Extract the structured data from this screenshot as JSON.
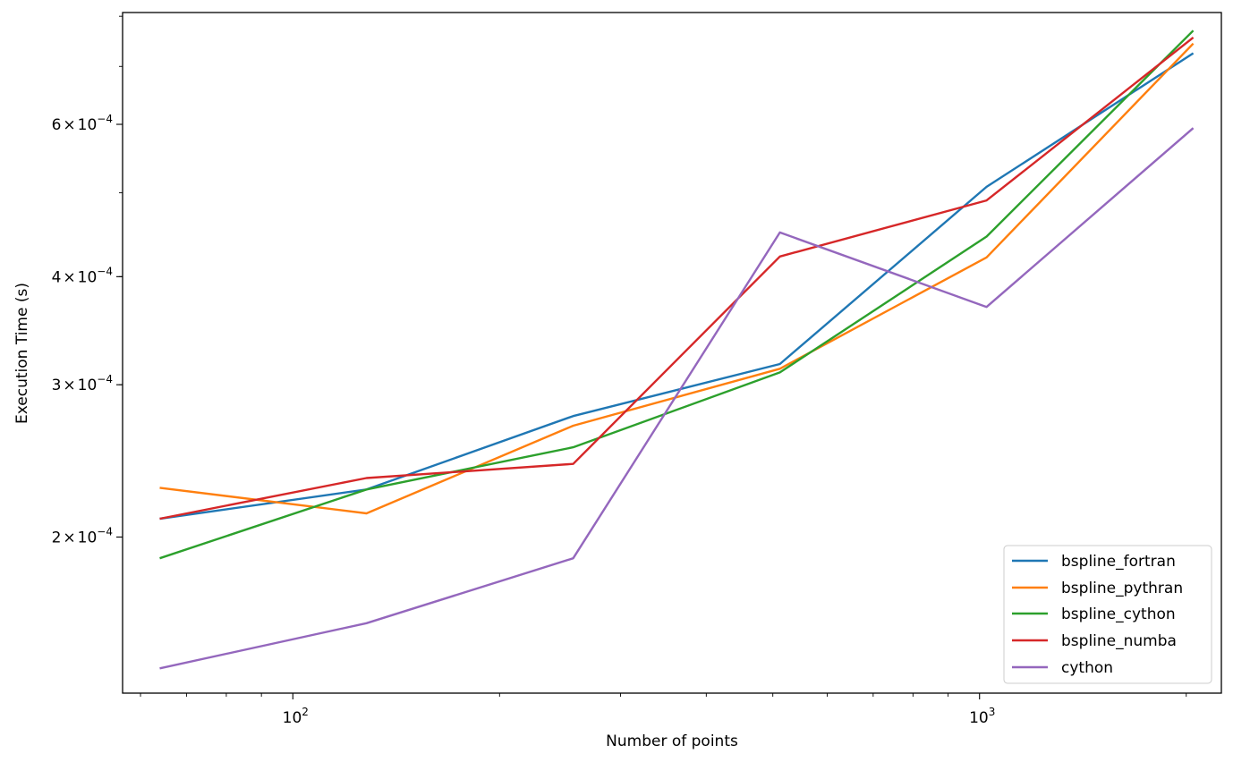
{
  "chart_data": {
    "type": "line",
    "title": "",
    "xlabel": "Number of points",
    "ylabel": "Execution Time (s)",
    "xscale": "log",
    "yscale": "log",
    "xlim": [
      56.5,
      2250
    ],
    "ylim": [
      0.000132,
      0.000808
    ],
    "x": [
      64,
      128,
      256,
      512,
      1024,
      2048
    ],
    "x_ticks": [
      {
        "value": 100,
        "base": "10",
        "exp": "2"
      },
      {
        "value": 1000,
        "base": "10",
        "exp": "3"
      }
    ],
    "y_ticks": [
      {
        "value": 0.0002,
        "mant": "2",
        "times": "×",
        "base": "10",
        "exp": "−4"
      },
      {
        "value": 0.0003,
        "mant": "3",
        "times": "×",
        "base": "10",
        "exp": "−4"
      },
      {
        "value": 0.0004,
        "mant": "4",
        "times": "×",
        "base": "10",
        "exp": "−4"
      },
      {
        "value": 0.0006,
        "mant": "6",
        "times": "×",
        "base": "10",
        "exp": "−4"
      }
    ],
    "legend_position": "lower-right",
    "series": [
      {
        "name": "bspline_fortran",
        "color": "#1f77b4",
        "values": [
          0.00021,
          0.000227,
          0.000276,
          0.000317,
          0.000508,
          0.000725
        ]
      },
      {
        "name": "bspline_pythran",
        "color": "#ff7f0e",
        "values": [
          0.000228,
          0.000213,
          0.000269,
          0.000313,
          0.000421,
          0.000744
        ]
      },
      {
        "name": "bspline_cython",
        "color": "#2ca02c",
        "values": [
          0.000189,
          0.000227,
          0.000254,
          0.00031,
          0.000445,
          0.00077
        ]
      },
      {
        "name": "bspline_numba",
        "color": "#d62728",
        "values": [
          0.00021,
          0.000234,
          0.000243,
          0.000422,
          0.00049,
          0.000756
        ]
      },
      {
        "name": "cython",
        "color": "#9467bd",
        "values": [
          0.000141,
          0.000159,
          0.000189,
          0.00045,
          0.000369,
          0.000594
        ]
      }
    ]
  }
}
